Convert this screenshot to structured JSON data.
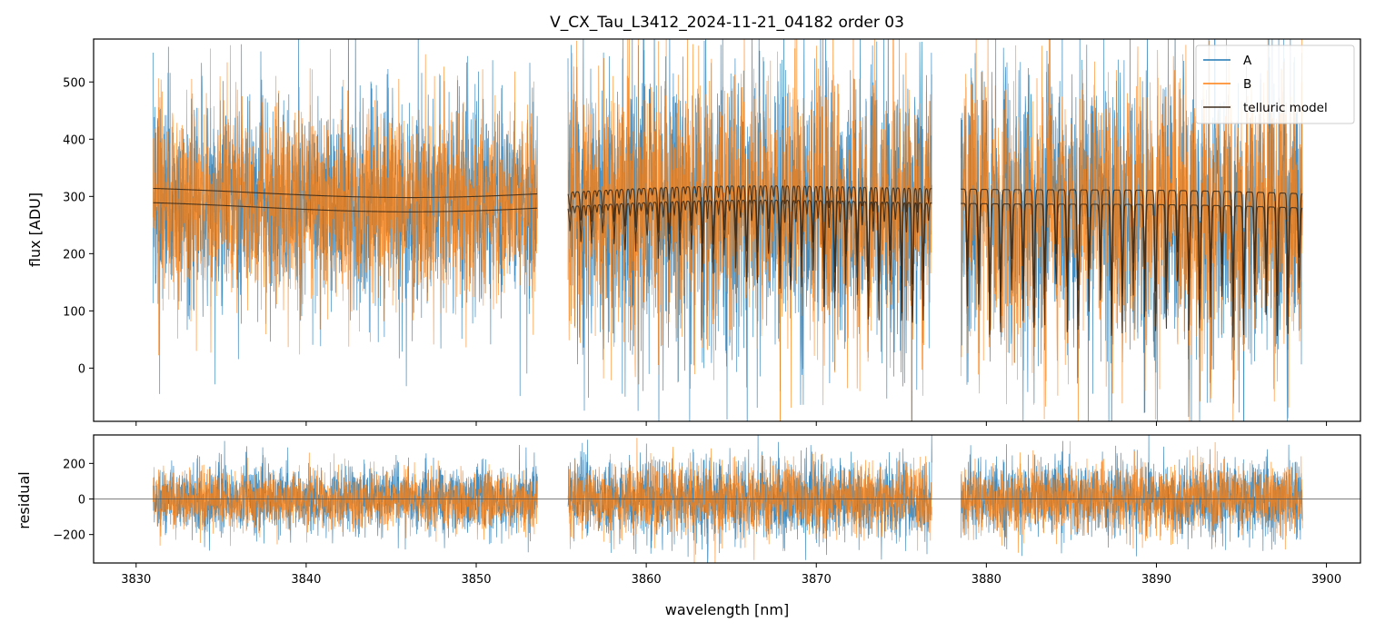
{
  "title": "V_CX_Tau_L3412_2024-11-21_04182  order 03",
  "chart_data": [
    {
      "panel": "flux",
      "type": "line",
      "ylabel": "flux [ADU]",
      "xlim": [
        3827.5,
        3902.0
      ],
      "ylim": [
        -93,
        575
      ],
      "yticks": [
        0,
        100,
        200,
        300,
        400,
        500
      ],
      "xticks": [
        3830,
        3840,
        3850,
        3860,
        3870,
        3880,
        3890,
        3900
      ],
      "segments": [
        [
          3831.0,
          3853.6
        ],
        [
          3855.4,
          3876.8
        ],
        [
          3878.5,
          3898.6
        ]
      ],
      "legend": {
        "position": "top-right",
        "entries": [
          "A",
          "B",
          "telluric model"
        ]
      },
      "series": [
        {
          "name": "A",
          "color": "#1f77b4",
          "approx_level": 300,
          "approx_scatter": 120
        },
        {
          "name": "B",
          "color": "#ff7f0e",
          "approx_level": 300,
          "approx_scatter": 110
        },
        {
          "name": "telluric model",
          "color": "#3b2a1a",
          "continuum_levels": [
            310,
            285
          ],
          "absorption_line_spacing_nm": 0.65,
          "absorption_line_depth_max": 230
        }
      ]
    },
    {
      "panel": "residual",
      "type": "line",
      "xlabel": "wavelength [nm]",
      "ylabel": "residual",
      "xlim": [
        3827.5,
        3902.0
      ],
      "ylim": [
        -360,
        360
      ],
      "yticks": [
        -200,
        0,
        200
      ],
      "xticks": [
        3830,
        3840,
        3850,
        3860,
        3870,
        3880,
        3890,
        3900
      ],
      "series": [
        {
          "name": "A",
          "color": "#1f77b4",
          "approx_scatter": 110
        },
        {
          "name": "B",
          "color": "#ff7f0e",
          "approx_scatter": 100
        }
      ],
      "zero_line": true
    }
  ]
}
